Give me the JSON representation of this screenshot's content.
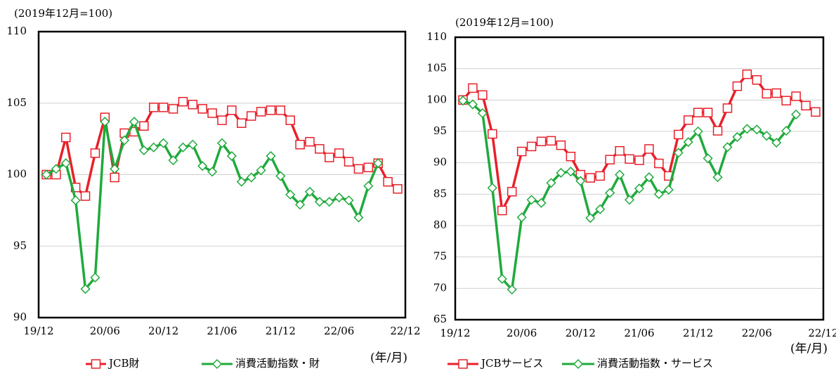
{
  "chart_data": [
    {
      "type": "line",
      "ylabel": "(2019年12月=100)",
      "xlabel": "(年/月)",
      "categories": [
        "19/12",
        null,
        null,
        null,
        null,
        null,
        "20/06",
        null,
        null,
        null,
        null,
        null,
        "20/12",
        null,
        null,
        null,
        null,
        null,
        "21/06",
        null,
        null,
        null,
        null,
        null,
        "21/12",
        null,
        null,
        null,
        null,
        null,
        "22/06",
        null,
        null,
        null,
        null,
        null,
        "22/12"
      ],
      "series": [
        {
          "name": "JCB財",
          "color": "#e8202a",
          "marker": "square",
          "values": [
            100,
            100,
            102.6,
            99.1,
            98.5,
            101.5,
            104.0,
            99.8,
            102.9,
            103.0,
            103.4,
            104.7,
            104.7,
            104.6,
            105.1,
            104.9,
            104.6,
            104.3,
            103.8,
            104.5,
            103.6,
            104.1,
            104.4,
            104.5,
            104.5,
            103.8,
            102.1,
            102.3,
            101.8,
            101.2,
            101.5,
            100.9,
            100.4,
            100.5,
            100.8,
            99.5,
            99.0
          ]
        },
        {
          "name": "消費活動指数・財",
          "color": "#1faa3c",
          "marker": "diamond",
          "values": [
            100,
            100.4,
            100.8,
            98.2,
            92.0,
            92.8,
            103.7,
            100.4,
            102.4,
            103.7,
            101.7,
            101.9,
            102.2,
            101.0,
            101.9,
            102.1,
            100.6,
            100.2,
            102.2,
            101.3,
            99.5,
            99.8,
            100.3,
            101.3,
            99.9,
            98.6,
            97.9,
            98.8,
            98.1,
            98.1,
            98.4,
            98.2,
            97.0,
            99.2,
            100.8,
            null,
            null
          ]
        }
      ],
      "ylim": [
        90,
        110
      ],
      "yticks": [
        90,
        95,
        100,
        105,
        110
      ],
      "grid": true,
      "legend": "bottom"
    },
    {
      "type": "line",
      "ylabel": "(2019年12月=100)",
      "xlabel": "(年/月)",
      "categories": [
        "19/12",
        null,
        null,
        null,
        null,
        null,
        "20/06",
        null,
        null,
        null,
        null,
        null,
        "20/12",
        null,
        null,
        null,
        null,
        null,
        "21/06",
        null,
        null,
        null,
        null,
        null,
        "21/12",
        null,
        null,
        null,
        null,
        null,
        "22/06",
        null,
        null,
        null,
        null,
        null,
        "22/12"
      ],
      "series": [
        {
          "name": "JCBサービス",
          "color": "#e8202a",
          "marker": "square",
          "values": [
            100,
            101.9,
            100.8,
            94.6,
            82.4,
            85.4,
            91.8,
            92.6,
            93.4,
            93.5,
            92.8,
            91.0,
            88.1,
            87.6,
            87.9,
            90.5,
            91.9,
            90.6,
            90.4,
            92.2,
            89.9,
            87.9,
            94.5,
            96.8,
            98.0,
            98.0,
            95.1,
            98.7,
            102.2,
            104.1,
            103.2,
            101.0,
            101.1,
            99.9,
            100.6,
            99.1,
            98.1
          ]
        },
        {
          "name": "消費活動指数・サービス",
          "color": "#1faa3c",
          "marker": "diamond",
          "values": [
            99.9,
            99.3,
            97.9,
            86.0,
            71.5,
            69.8,
            81.3,
            84.1,
            83.6,
            86.8,
            88.4,
            88.6,
            87.1,
            81.2,
            82.6,
            85.2,
            88.1,
            84.1,
            85.9,
            87.7,
            85.0,
            85.7,
            91.6,
            93.3,
            95.0,
            90.7,
            87.7,
            92.5,
            94.1,
            95.4,
            95.3,
            94.3,
            93.2,
            95.1,
            97.7,
            null,
            null
          ]
        }
      ],
      "ylim": [
        65,
        110
      ],
      "yticks": [
        65,
        70,
        75,
        80,
        85,
        90,
        95,
        100,
        105,
        110
      ],
      "grid": true,
      "legend": "bottom"
    }
  ]
}
